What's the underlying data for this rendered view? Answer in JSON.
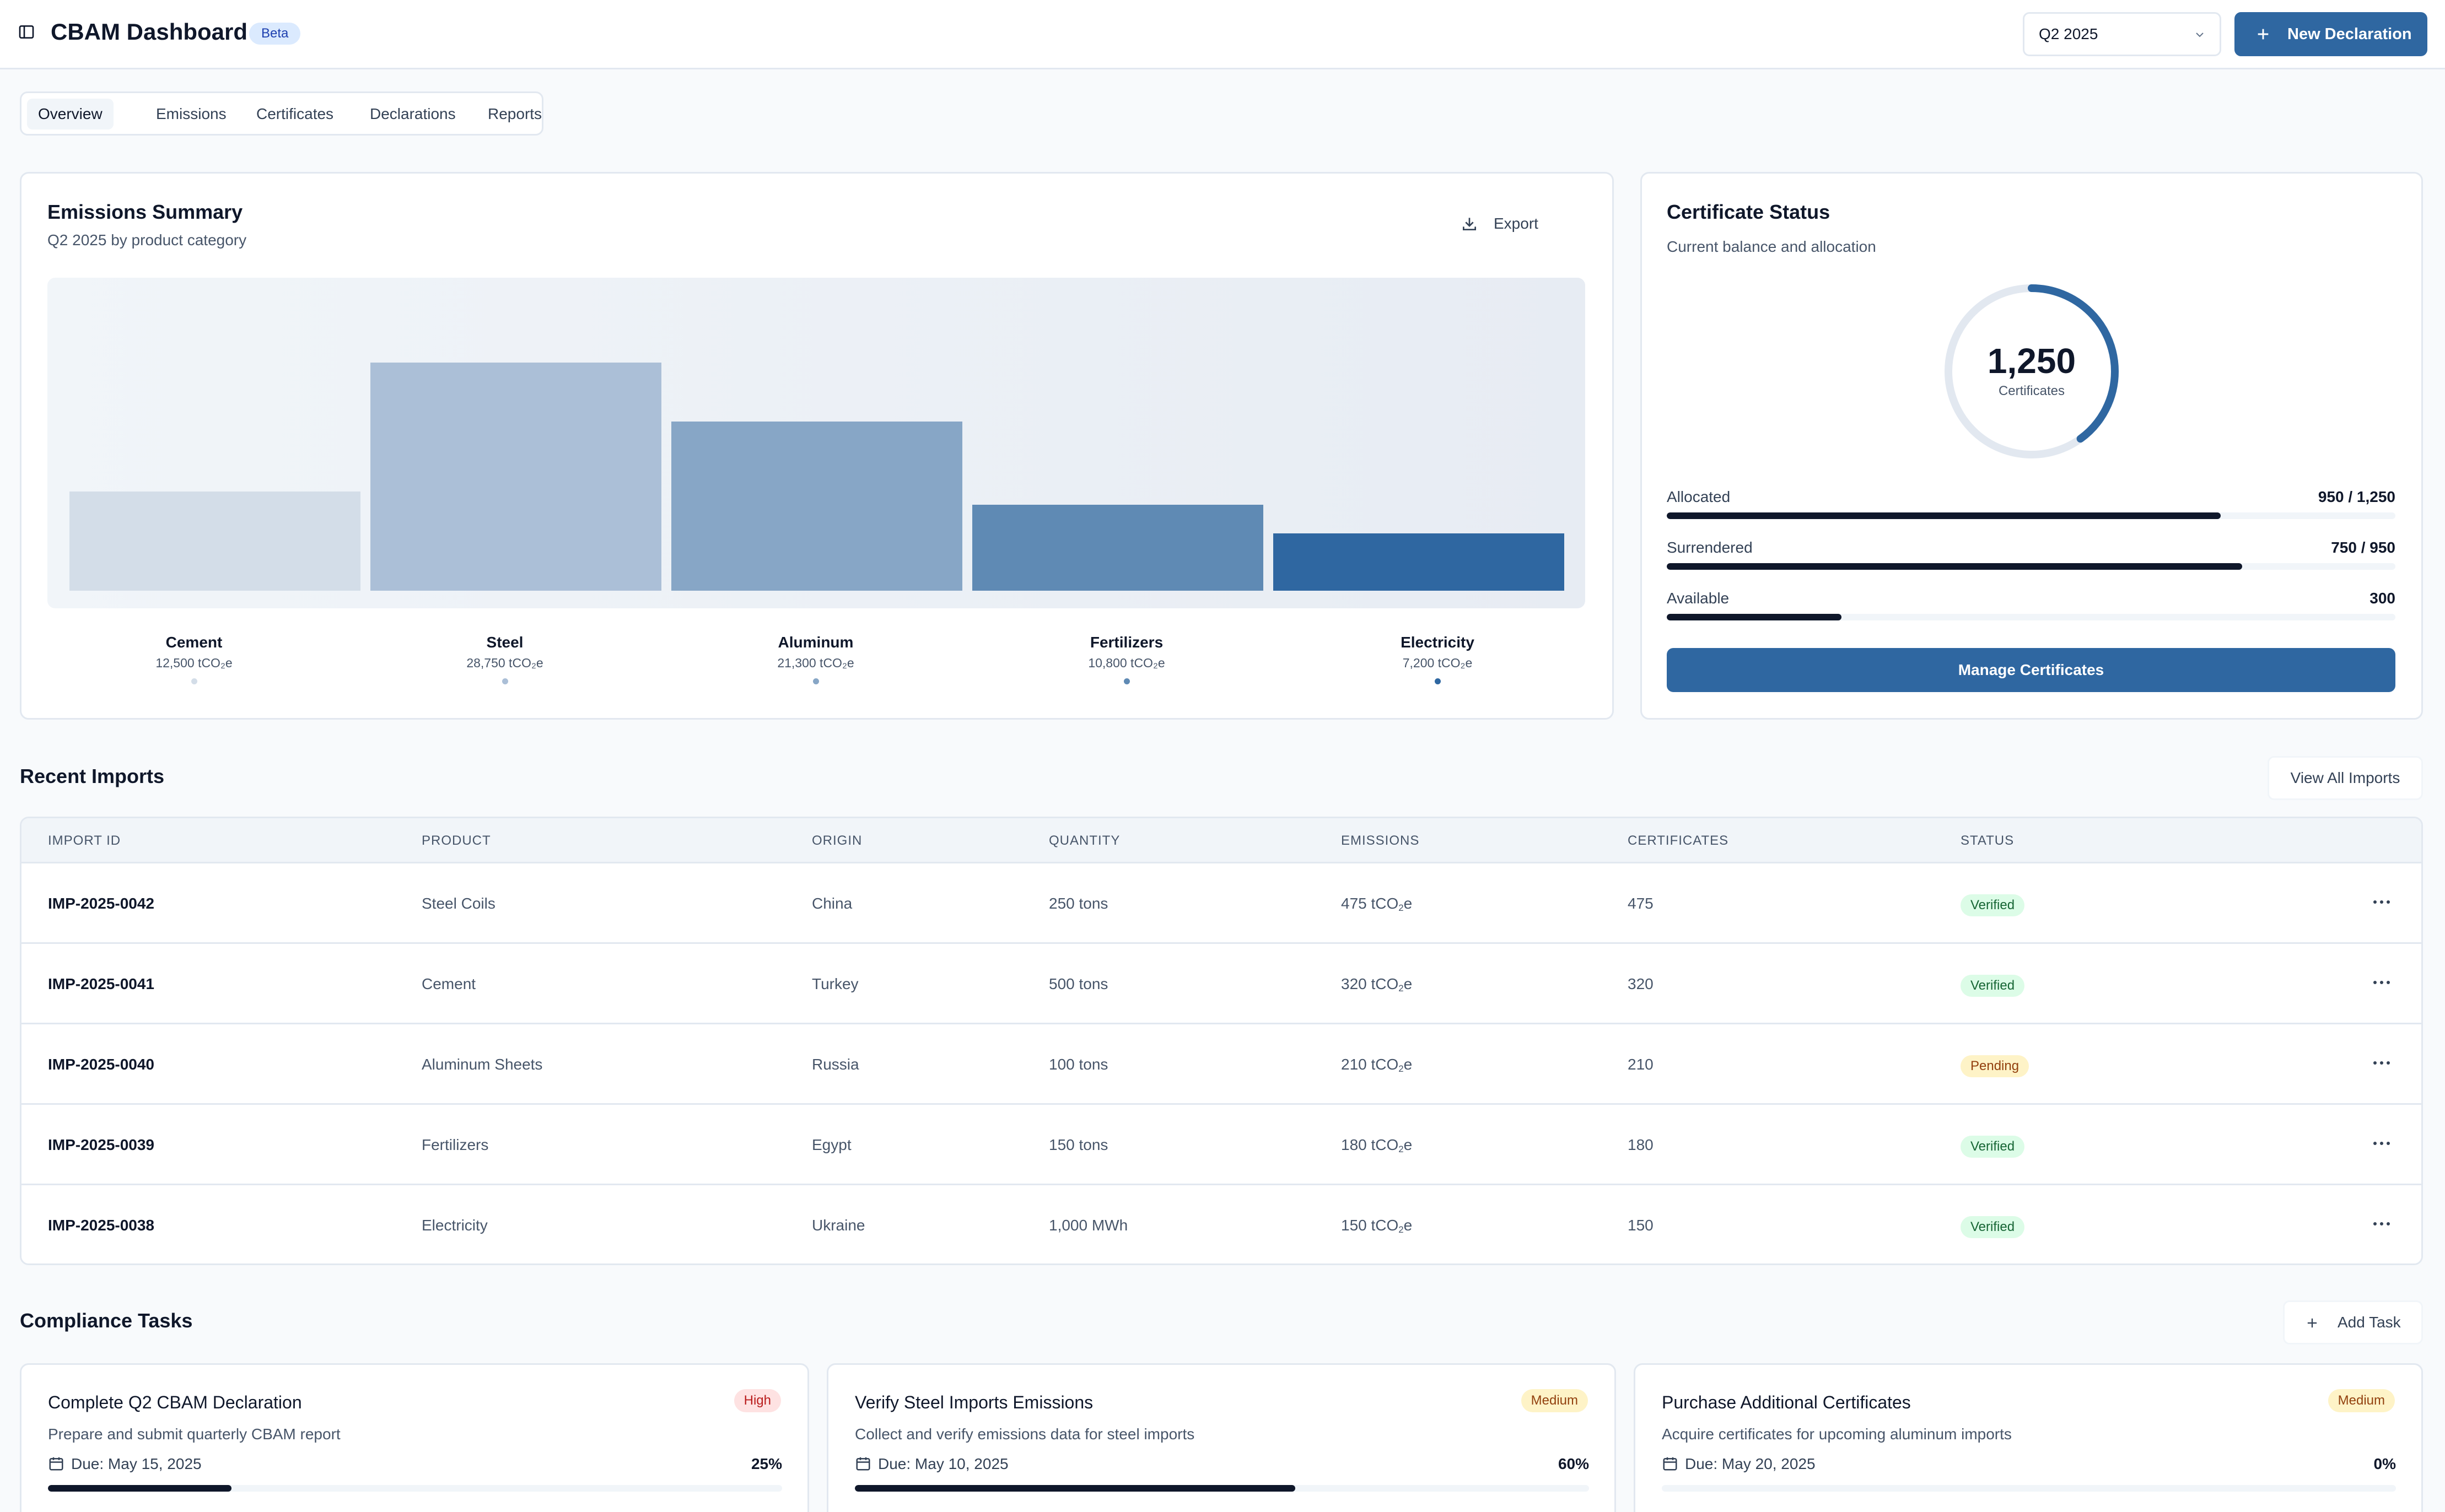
{
  "header": {
    "title": "CBAM Dashboard",
    "badge": "Beta",
    "period_selected": "Q2 2025",
    "new_declaration_label": "New Declaration"
  },
  "tabs": [
    {
      "label": "Overview",
      "active": true
    },
    {
      "label": "Emissions",
      "active": false
    },
    {
      "label": "Certificates",
      "active": false
    },
    {
      "label": "Declarations",
      "active": false
    },
    {
      "label": "Reports",
      "active": false
    }
  ],
  "emissions_summary": {
    "title": "Emissions Summary",
    "subtitle": "Q2 2025 by product category",
    "export_label": "Export"
  },
  "chart_data": {
    "type": "bar",
    "title": "Emissions Summary",
    "subtitle": "Q2 2025 by product category",
    "categories": [
      "Cement",
      "Steel",
      "Aluminum",
      "Fertilizers",
      "Electricity"
    ],
    "values": [
      12500,
      28750,
      21300,
      10800,
      7200
    ],
    "value_labels": [
      "12,500 tCO₂e",
      "28,750 tCO₂e",
      "21,300 tCO₂e",
      "10,800 tCO₂e",
      "7,200 tCO₂e"
    ],
    "unit": "tCO₂e",
    "colors": [
      "#d3dde8",
      "#abbfd7",
      "#87a6c6",
      "#5f8ab4",
      "#2f67a1"
    ],
    "ylim": [
      0,
      30000
    ]
  },
  "certificate_status": {
    "title": "Certificate Status",
    "subtitle": "Current balance and allocation",
    "total": "1,250",
    "total_label": "Certificates",
    "ring_fraction": 0.4,
    "rows": [
      {
        "label": "Allocated",
        "value": "950 / 1,250",
        "fraction": 0.76
      },
      {
        "label": "Surrendered",
        "value": "750 / 950",
        "fraction": 0.79
      },
      {
        "label": "Available",
        "value": "300",
        "fraction": 0.24
      }
    ],
    "manage_label": "Manage Certificates"
  },
  "recent_imports": {
    "title": "Recent Imports",
    "view_all_label": "View All Imports",
    "columns": [
      "IMPORT ID",
      "PRODUCT",
      "ORIGIN",
      "QUANTITY",
      "EMISSIONS",
      "CERTIFICATES",
      "STATUS"
    ],
    "rows": [
      {
        "id": "IMP-2025-0042",
        "product": "Steel Coils",
        "origin": "China",
        "quantity": "250 tons",
        "emissions": "475",
        "certificates": "475",
        "status": "Verified"
      },
      {
        "id": "IMP-2025-0041",
        "product": "Cement",
        "origin": "Turkey",
        "quantity": "500 tons",
        "emissions": "320",
        "certificates": "320",
        "status": "Verified"
      },
      {
        "id": "IMP-2025-0040",
        "product": "Aluminum Sheets",
        "origin": "Russia",
        "quantity": "100 tons",
        "emissions": "210",
        "certificates": "210",
        "status": "Pending"
      },
      {
        "id": "IMP-2025-0039",
        "product": "Fertilizers",
        "origin": "Egypt",
        "quantity": "150 tons",
        "emissions": "180",
        "certificates": "180",
        "status": "Verified"
      },
      {
        "id": "IMP-2025-0038",
        "product": "Electricity",
        "origin": "Ukraine",
        "quantity": "1,000 MWh",
        "emissions": "150",
        "certificates": "150",
        "status": "Verified"
      }
    ],
    "emissions_unit_prefix": "tCO",
    "emissions_unit_sub": "2",
    "emissions_unit_suffix": "e"
  },
  "compliance_tasks": {
    "title": "Compliance Tasks",
    "add_label": "Add Task",
    "items": [
      {
        "title": "Complete Q2 CBAM Declaration",
        "priority": "High",
        "desc": "Prepare and submit quarterly CBAM report",
        "due": "Due: May 15, 2025",
        "progress": "25%",
        "fraction": 0.25
      },
      {
        "title": "Verify Steel Imports Emissions",
        "priority": "Medium",
        "desc": "Collect and verify emissions data for steel imports",
        "due": "Due: May 10, 2025",
        "progress": "60%",
        "fraction": 0.6
      },
      {
        "title": "Purchase Additional Certificates",
        "priority": "Medium",
        "desc": "Acquire certificates for upcoming aluminum imports",
        "due": "Due: May 20, 2025",
        "progress": "0%",
        "fraction": 0
      }
    ]
  }
}
